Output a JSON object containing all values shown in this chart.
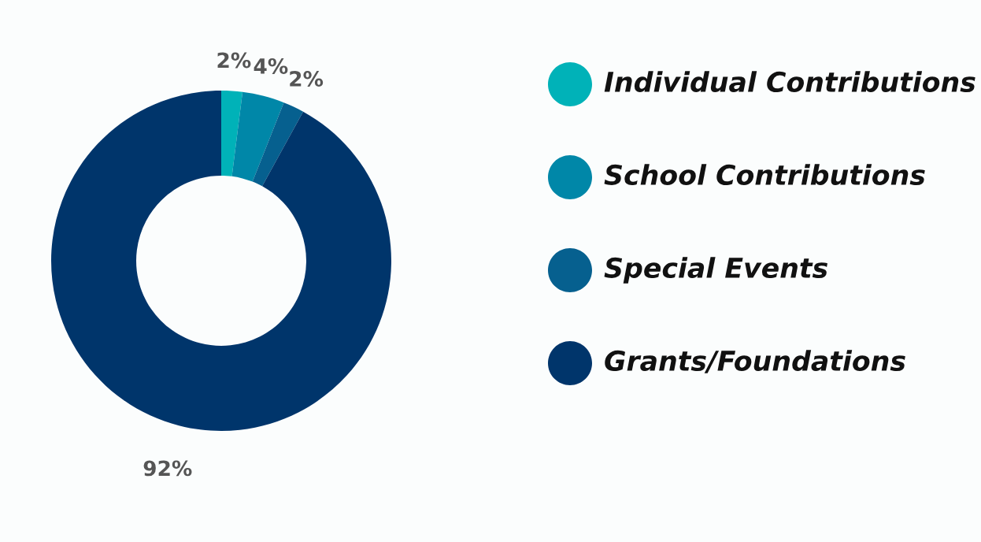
{
  "chart_data": {
    "type": "donut",
    "categories": [
      "Individual Contributions",
      "School Contributions",
      "Special Events",
      "Grants/Foundations"
    ],
    "values": [
      2,
      4,
      2,
      92
    ],
    "colors": [
      "#00b2b8",
      "#0087a8",
      "#06608f",
      "#00356b"
    ],
    "value_labels": [
      "2%",
      "4%",
      "2%",
      "92%"
    ],
    "legend": "right"
  }
}
